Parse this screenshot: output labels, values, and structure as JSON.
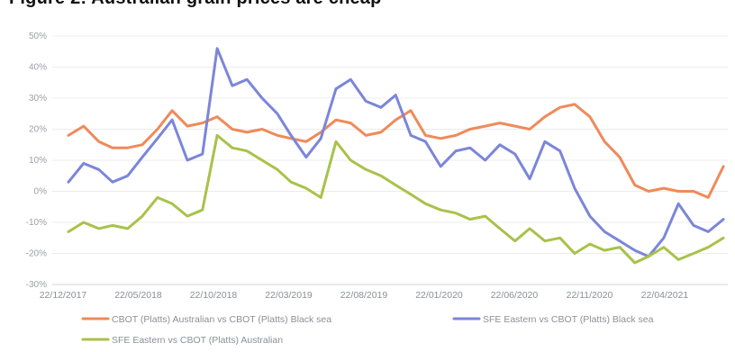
{
  "chart_data": {
    "type": "line",
    "title": "Figure 2: Australian grain prices are cheap",
    "ylim": [
      -30,
      50
    ],
    "yticks": [
      "-30%",
      "-20%",
      "-10%",
      "0%",
      "10%",
      "20%",
      "30%",
      "40%",
      "50%"
    ],
    "x_tick_labels": [
      "22/12/2017",
      "22/05/2018",
      "22/10/2018",
      "22/03/2019",
      "22/08/2019",
      "22/01/2020",
      "22/06/2020",
      "22/11/2020",
      "22/04/2021"
    ],
    "x": [
      "2017-12-22",
      "2018-01-22",
      "2018-02-22",
      "2018-03-22",
      "2018-04-22",
      "2018-05-22",
      "2018-06-22",
      "2018-07-22",
      "2018-08-22",
      "2018-09-22",
      "2018-10-22",
      "2018-11-22",
      "2018-12-22",
      "2019-01-22",
      "2019-02-22",
      "2019-03-22",
      "2019-04-22",
      "2019-05-22",
      "2019-06-22",
      "2019-07-22",
      "2019-08-22",
      "2019-09-22",
      "2019-10-22",
      "2019-11-22",
      "2019-12-22",
      "2020-01-22",
      "2020-02-22",
      "2020-03-22",
      "2020-04-22",
      "2020-05-22",
      "2020-06-22",
      "2020-07-22",
      "2020-08-22",
      "2020-09-22",
      "2020-10-22",
      "2020-11-22",
      "2020-12-22",
      "2021-01-22",
      "2021-02-22",
      "2021-03-22",
      "2021-04-22",
      "2021-05-22",
      "2021-06-22",
      "2021-07-22",
      "2021-08-22"
    ],
    "series": [
      {
        "name": "CBOT (Platts) Australian vs CBOT (Platts) Black sea",
        "color": "#ef8a5a",
        "values": [
          18,
          21,
          16,
          14,
          14,
          15,
          20,
          26,
          21,
          22,
          24,
          20,
          19,
          20,
          18,
          17,
          16,
          19,
          23,
          22,
          18,
          19,
          23,
          26,
          18,
          17,
          18,
          20,
          21,
          22,
          21,
          20,
          24,
          27,
          28,
          24,
          16,
          11,
          2,
          0,
          1,
          0,
          0,
          -2,
          8
        ]
      },
      {
        "name": "SFE Eastern vs CBOT (Platts) Black sea",
        "color": "#7b86d9",
        "values": [
          3,
          9,
          7,
          3,
          5,
          11,
          17,
          23,
          10,
          12,
          46,
          34,
          36,
          30,
          25,
          18,
          11,
          17,
          33,
          36,
          29,
          27,
          31,
          18,
          16,
          8,
          13,
          14,
          10,
          15,
          12,
          4,
          16,
          13,
          1,
          -8,
          -13,
          -16,
          -19,
          -21,
          -15,
          -4,
          -11,
          -13,
          -9
        ]
      },
      {
        "name": "SFE Eastern vs CBOT (Platts) Australian",
        "color": "#a8c24a",
        "values": [
          -13,
          -10,
          -12,
          -11,
          -12,
          -8,
          -2,
          -4,
          -8,
          -6,
          18,
          14,
          13,
          10,
          7,
          3,
          1,
          -2,
          16,
          10,
          7,
          5,
          2,
          -1,
          -4,
          -6,
          -7,
          -9,
          -8,
          -12,
          -16,
          -12,
          -16,
          -15,
          -20,
          -17,
          -19,
          -18,
          -23,
          -21,
          -18,
          -22,
          -20,
          -18,
          -15
        ]
      }
    ],
    "grid": true,
    "legend_position": "bottom"
  }
}
